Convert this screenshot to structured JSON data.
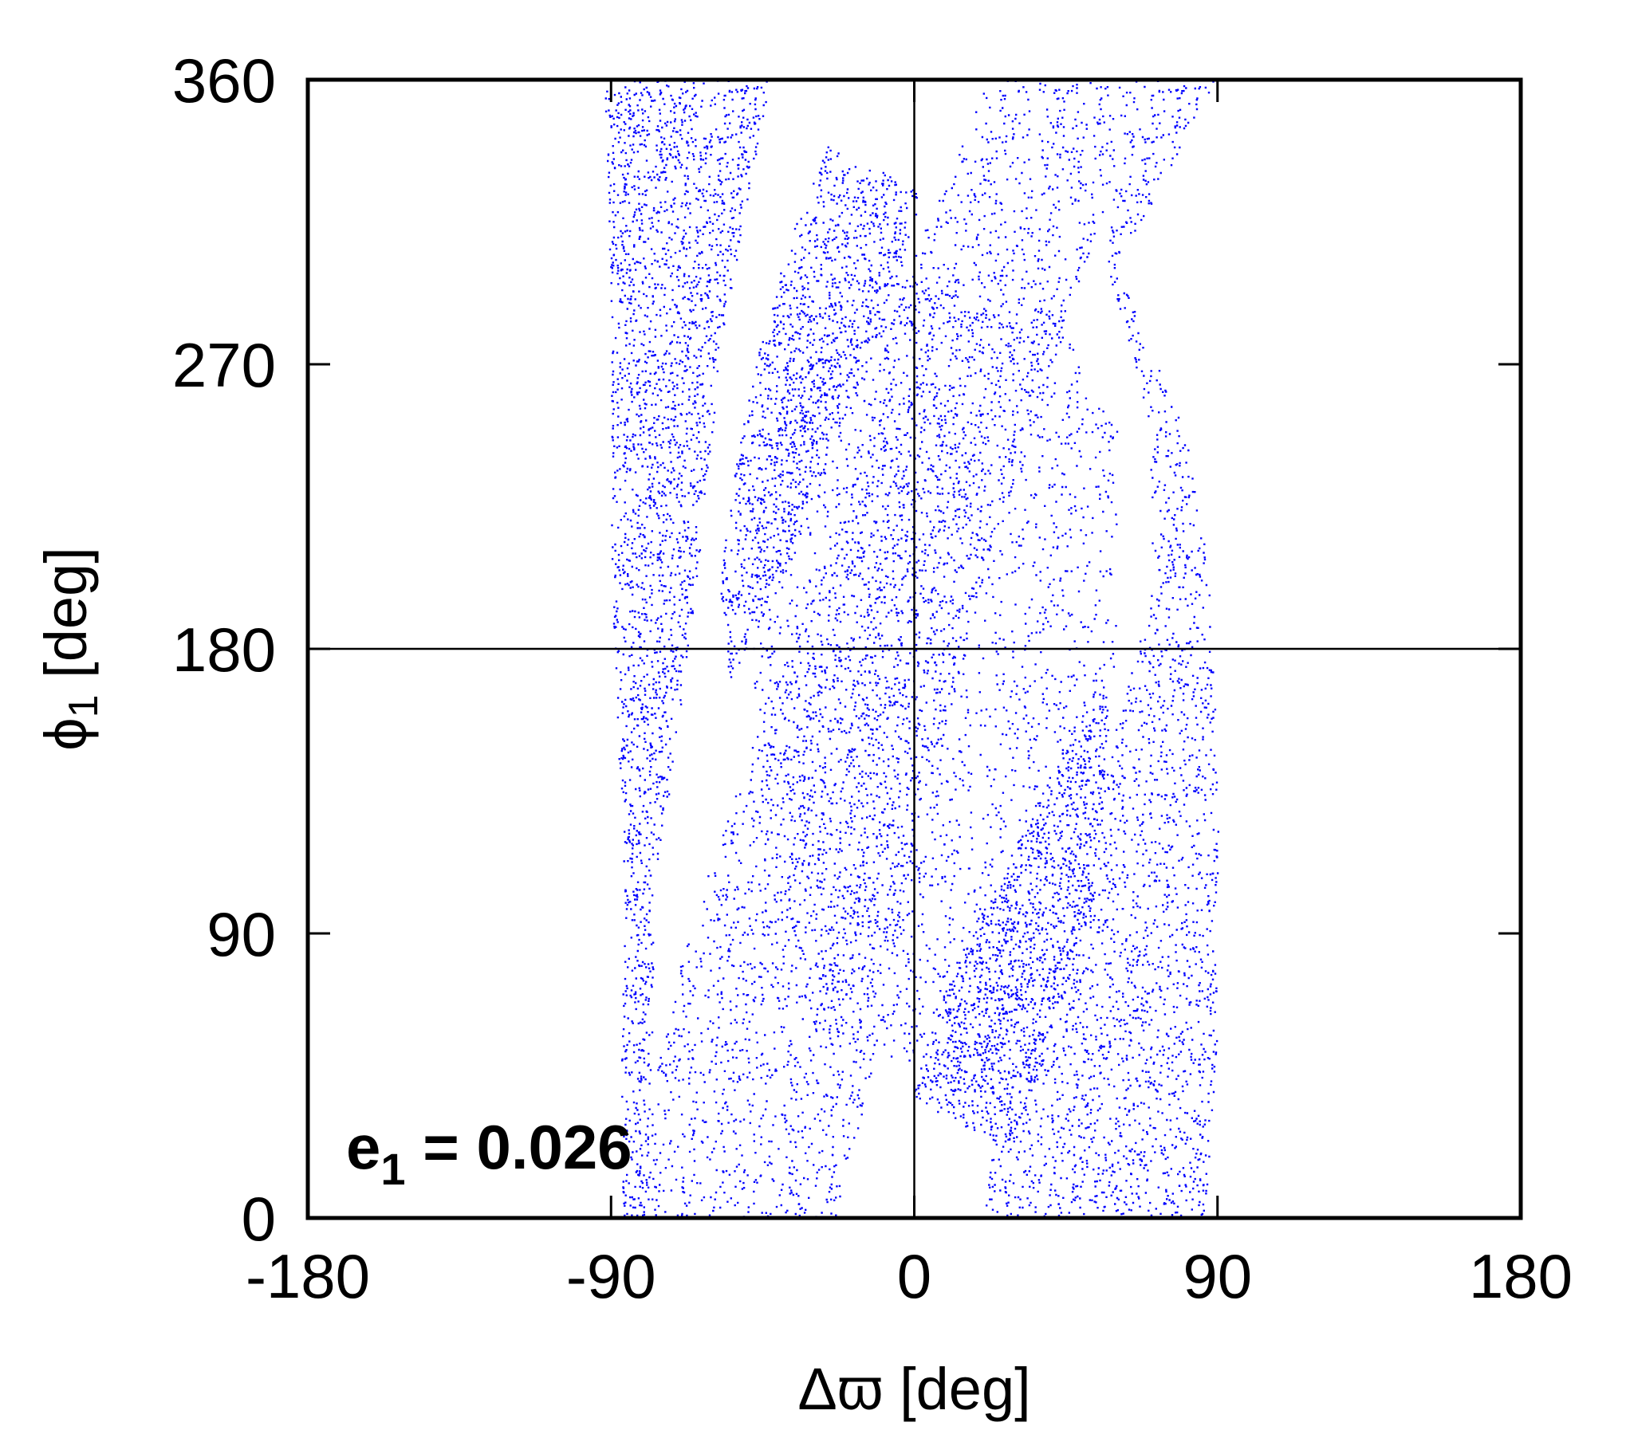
{
  "chart_data": {
    "type": "scatter",
    "title": "",
    "xlabel": "Δϖ [deg]",
    "ylabel_main": "ϕ",
    "ylabel_sub": "1",
    "ylabel_tail": " [deg]",
    "xlim": [
      -180,
      180
    ],
    "ylim": [
      0,
      360
    ],
    "xticks": [
      -180,
      -90,
      0,
      90,
      180
    ],
    "yticks": [
      0,
      90,
      180,
      270,
      360
    ],
    "xtick_labels": [
      "-180",
      "-90",
      "0",
      "90",
      "180"
    ],
    "ytick_labels": [
      "0",
      "90",
      "180",
      "270",
      "360"
    ],
    "grid": false,
    "zero_axes": {
      "x": 0,
      "y": 180
    },
    "legend": "none",
    "annotation": {
      "main": "e",
      "sub": "1",
      "tail": " = 0.026",
      "position": "bottom-left"
    },
    "point_color": "#0000ff",
    "series": [
      {
        "description_key": "dense band: steep diagonal from lower-left to upper-right",
        "polygon": [
          [
            -80,
            100
          ],
          [
            -60,
            100
          ],
          [
            -45,
            0
          ],
          [
            -75,
            0
          ]
        ],
        "extra_regions": []
      }
    ],
    "regions": [
      {
        "kind": "dense",
        "points": [
          [
            -86,
            0
          ],
          [
            -23,
            0
          ],
          [
            -10,
            60
          ],
          [
            0,
            120
          ],
          [
            20,
            200
          ],
          [
            50,
            300
          ],
          [
            69,
            360
          ],
          [
            22,
            360
          ],
          [
            -2,
            300
          ],
          [
            -30,
            200
          ],
          [
            -55,
            130
          ],
          [
            -70,
            80
          ]
        ]
      },
      {
        "kind": "dense",
        "points": [
          [
            19,
            0
          ],
          [
            86,
            0
          ],
          [
            90,
            60
          ],
          [
            90,
            130
          ],
          [
            88,
            200
          ],
          [
            80,
            250
          ],
          [
            60,
            300
          ],
          [
            89,
            360
          ],
          [
            69,
            360
          ],
          [
            55,
            310
          ],
          [
            70,
            250
          ],
          [
            70,
            200
          ],
          [
            55,
            140
          ],
          [
            40,
            80
          ],
          [
            25,
            30
          ]
        ]
      },
      {
        "kind": "dense",
        "points": [
          [
            -92,
            360
          ],
          [
            -43,
            360
          ],
          [
            -50,
            320
          ],
          [
            -58,
            270
          ],
          [
            -65,
            200
          ],
          [
            -72,
            140
          ],
          [
            -77,
            110
          ],
          [
            -78,
            60
          ],
          [
            -80,
            0
          ],
          [
            -87,
            0
          ],
          [
            -87,
            60
          ],
          [
            -86,
            100
          ],
          [
            -88,
            150
          ],
          [
            -90,
            200
          ],
          [
            -90,
            260
          ],
          [
            -91,
            320
          ]
        ]
      },
      {
        "kind": "sparse",
        "points": [
          [
            -27,
            340
          ],
          [
            2,
            325
          ],
          [
            -5,
            295
          ],
          [
            -25,
            240
          ],
          [
            -40,
            200
          ],
          [
            -55,
            170
          ],
          [
            -58,
            200
          ],
          [
            -52,
            250
          ],
          [
            -40,
            300
          ]
        ]
      },
      {
        "kind": "sparse",
        "points": [
          [
            -1,
            38
          ],
          [
            28,
            22
          ],
          [
            40,
            55
          ],
          [
            52,
            100
          ],
          [
            58,
            160
          ],
          [
            55,
            175
          ],
          [
            40,
            140
          ],
          [
            22,
            100
          ],
          [
            8,
            70
          ]
        ]
      },
      {
        "kind": "sparse",
        "points": [
          [
            -20,
            300
          ],
          [
            40,
            290
          ],
          [
            60,
            250
          ],
          [
            60,
            180
          ],
          [
            45,
            100
          ],
          [
            20,
            40
          ],
          [
            -30,
            60
          ],
          [
            -45,
            120
          ],
          [
            -50,
            200
          ],
          [
            -40,
            260
          ]
        ]
      }
    ]
  }
}
